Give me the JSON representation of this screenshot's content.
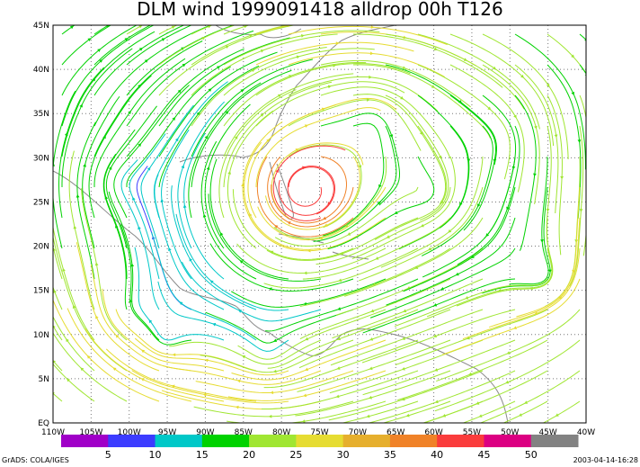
{
  "title": "DLM wind 1999091418 alldrop 00h T126",
  "map": {
    "lon_labels": [
      "110W",
      "105W",
      "100W",
      "95W",
      "90W",
      "85W",
      "80W",
      "75W",
      "70W",
      "65W",
      "60W",
      "55W",
      "50W",
      "45W",
      "40W"
    ],
    "lat_labels": [
      "EQ",
      "5N",
      "10N",
      "15N",
      "20N",
      "25N",
      "30N",
      "35N",
      "40N",
      "45N"
    ]
  },
  "colorbar": {
    "labels": [
      5,
      10,
      15,
      20,
      25,
      30,
      35,
      40,
      45,
      50
    ],
    "colors": [
      "#a000c8",
      "#3c3cff",
      "#00c8c8",
      "#00d200",
      "#a0e632",
      "#e6dc32",
      "#e6af2d",
      "#f08228",
      "#fa3c3c",
      "#dc0082",
      "#828282"
    ]
  },
  "footer": {
    "left": "GrADS: COLA/IGES",
    "right": "2003-04-14-16:28"
  }
}
